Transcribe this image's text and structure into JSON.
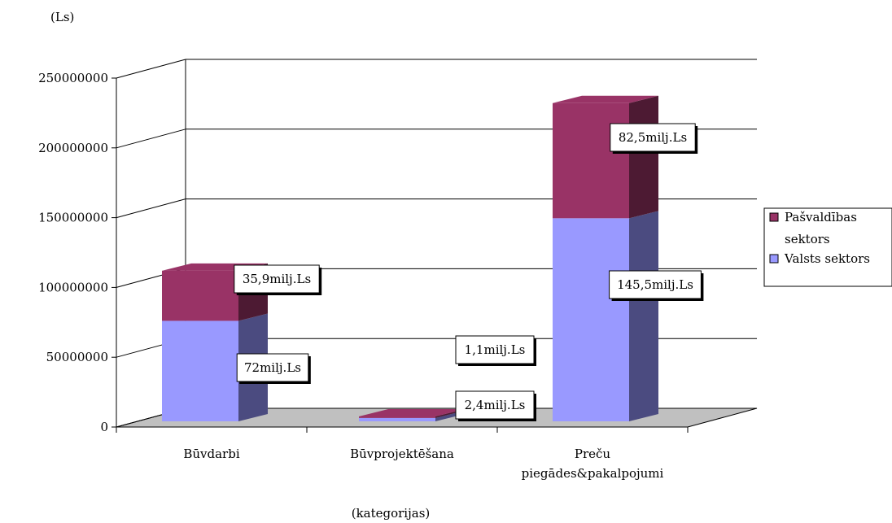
{
  "chart_data": {
    "type": "bar",
    "stacked": true,
    "three_d": true,
    "categories": [
      "Būvdarbi",
      "Būvprojektēšana",
      "Preču\npiegādes&pakalpojumi"
    ],
    "series": [
      {
        "name": "Valsts sektors",
        "color": "#9999ff",
        "side_color": "#4b4b80",
        "values": [
          72000000,
          2400000,
          145500000
        ],
        "labels": [
          "72milj.Ls",
          "2,4milj.Ls",
          "145,5milj.Ls"
        ]
      },
      {
        "name": "Pašvaldības sektors",
        "color": "#993366",
        "side_color": "#4d1a33",
        "values": [
          35900000,
          1100000,
          82500000
        ],
        "labels": [
          "35,9milj.Ls",
          "1,1milj.Ls",
          "82,5milj.Ls"
        ]
      }
    ],
    "ylabel": "(Ls)",
    "xlabel": "(kategorijas)",
    "ylim": [
      0,
      250000000
    ],
    "yticks": [
      0,
      50000000,
      100000000,
      150000000,
      200000000,
      250000000
    ],
    "ytick_labels": [
      "0",
      "50000000",
      "100000000",
      "150000000",
      "200000000",
      "250000000"
    ],
    "grid": true,
    "legend_position": "right",
    "floor_color": "#c0c0c0"
  }
}
